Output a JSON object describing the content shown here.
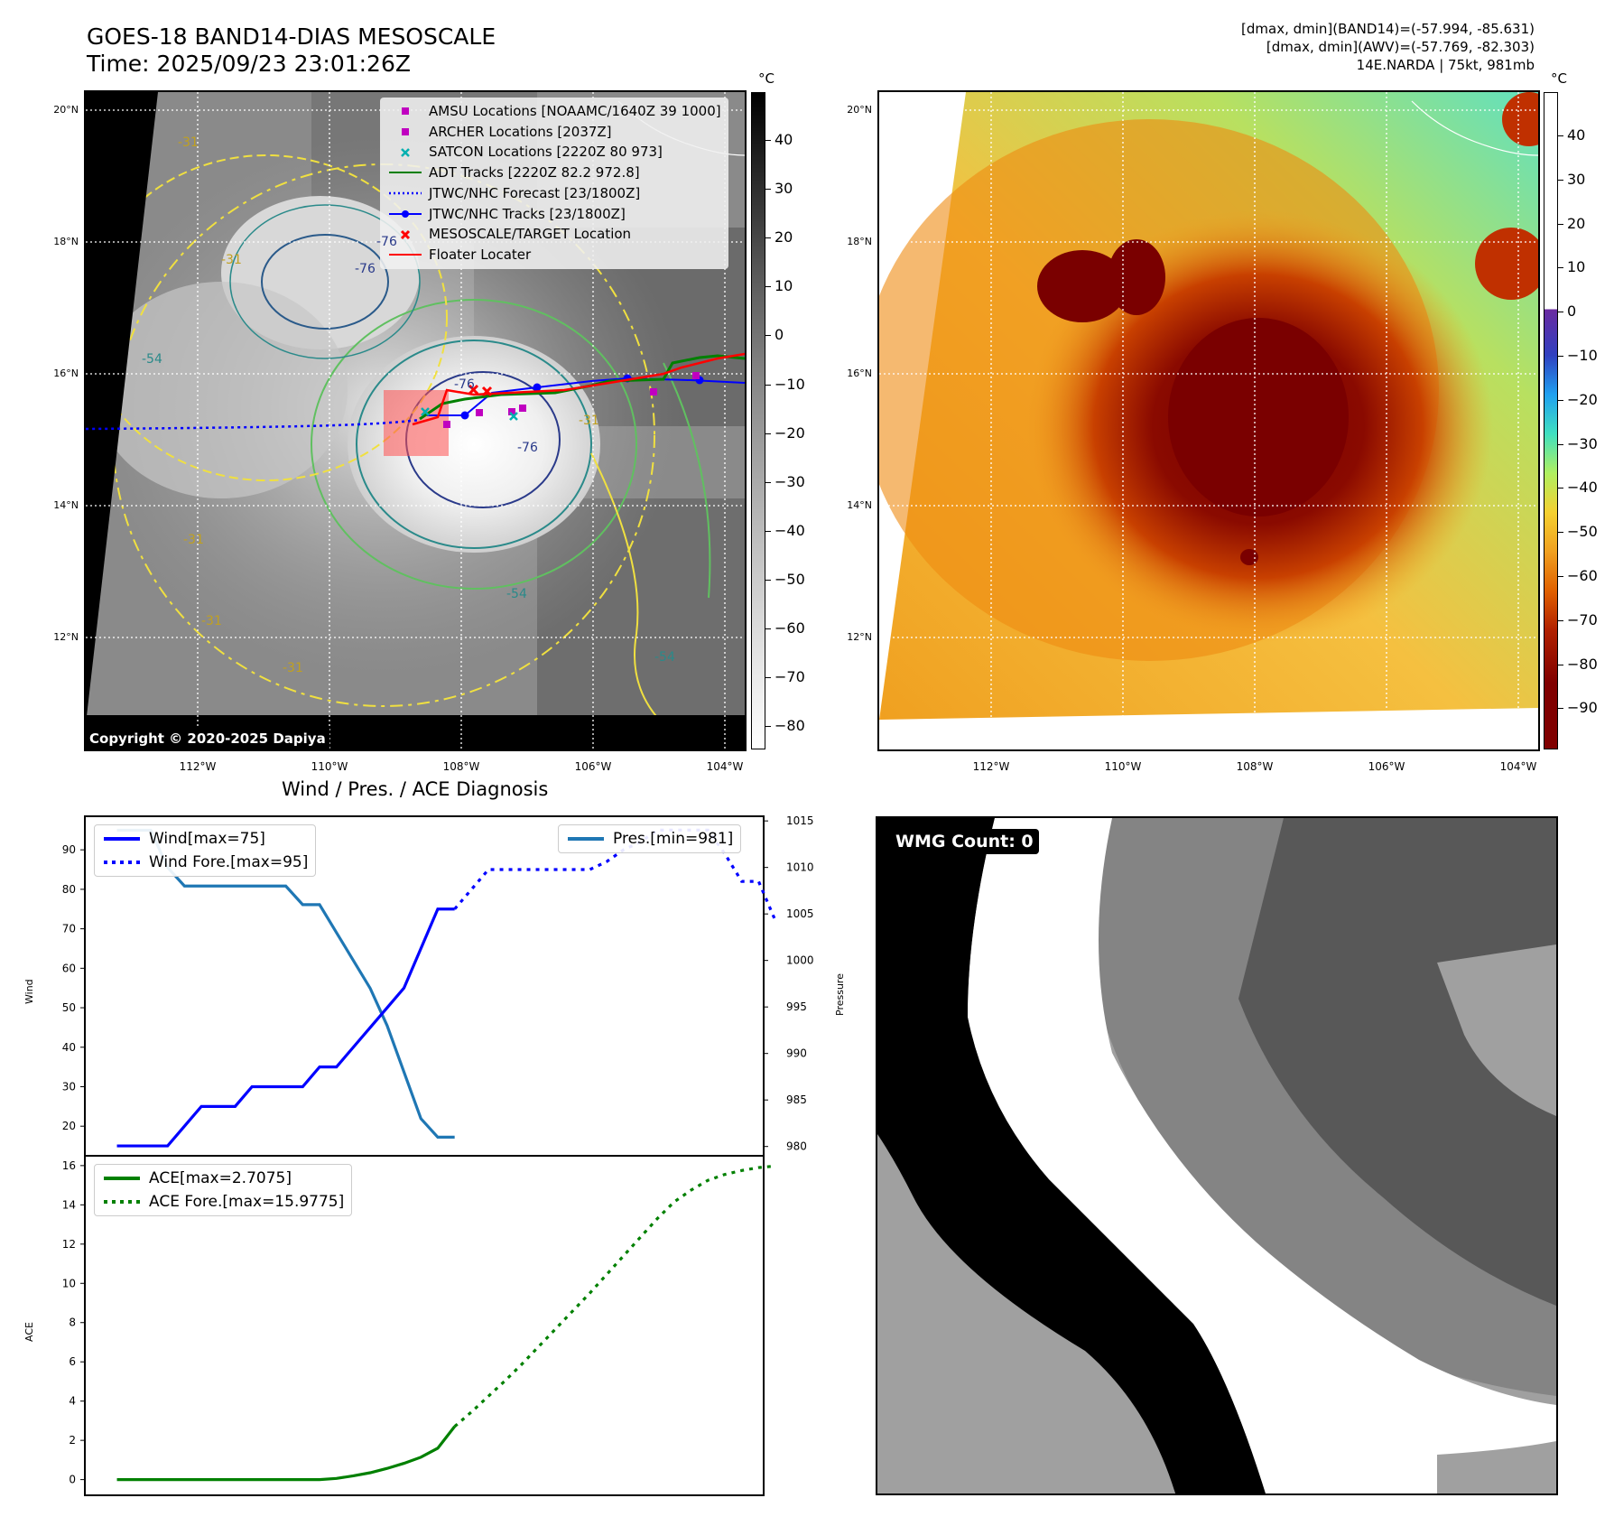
{
  "header": {
    "title_line1": "GOES-18 BAND14-DIAS MESOSCALE",
    "title_line2": "Time: 2025/09/23 23:01:26Z",
    "right_line1": "[dmax, dmin](BAND14)=(-57.994, -85.631)",
    "right_line2": "[dmax, dmin](AWV)=(-57.769, -82.303)",
    "right_line3": "14E.NARDA | 75kt, 981mb"
  },
  "map_axes": {
    "lon_labels": [
      "112°W",
      "110°W",
      "108°W",
      "106°W",
      "104°W"
    ],
    "lat_labels": [
      "20°N",
      "18°N",
      "16°N",
      "14°N",
      "12°N"
    ]
  },
  "ir_panel": {
    "legend": [
      {
        "label": "AMSU Locations [NOAAMC/1640Z 39 1000]",
        "symbol": "square",
        "color": "#c000c0"
      },
      {
        "label": "ARCHER Locations [2037Z]",
        "symbol": "square",
        "color": "#c000c0"
      },
      {
        "label": "SATCON Locations [2220Z 80 973]",
        "symbol": "x",
        "color": "#00b0b0"
      },
      {
        "label": "ADT Tracks [2220Z 82.2 972.8]",
        "symbol": "line",
        "color": "#008000"
      },
      {
        "label": "JTWC/NHC Forecast [23/1800Z]",
        "symbol": "dotted",
        "color": "#0000ff"
      },
      {
        "label": "JTWC/NHC Tracks [23/1800Z]",
        "symbol": "line-dot",
        "color": "#0000ff"
      },
      {
        "label": "MESOSCALE/TARGET Location",
        "symbol": "x",
        "color": "#ff0000"
      },
      {
        "label": "Floater Locater",
        "symbol": "line",
        "color": "#ff0000"
      }
    ],
    "copyright": "Copyright © 2020-2025 Dapiya",
    "contour_labels": [
      "-76",
      "-76",
      "-76",
      "-76",
      "-54",
      "-54",
      "-54",
      "-31",
      "-31",
      "-31",
      "-31",
      "-31",
      "-31"
    ],
    "colorbar_unit": "°C",
    "colorbar_ticks": [
      "40",
      "30",
      "20",
      "10",
      "0",
      "−10",
      "−20",
      "−30",
      "−40",
      "−50",
      "−60",
      "−70",
      "−80"
    ]
  },
  "awv_panel": {
    "colorbar_unit": "°C",
    "colorbar_ticks": [
      "40",
      "30",
      "20",
      "10",
      "0",
      "−10",
      "−20",
      "−30",
      "−40",
      "−50",
      "−60",
      "−70",
      "−80",
      "−90"
    ]
  },
  "wmg_panel": {
    "badge": "WMG Count: 0"
  },
  "colors": {
    "wind": "#0000ff",
    "pressure": "#1f77b4",
    "ace": "#008000",
    "track_red": "#ff0000",
    "track_green": "#008000",
    "awv_cold": "#7a0000",
    "awv_warm": "#f5a623"
  },
  "chart_data": [
    {
      "type": "line",
      "title": "Wind / Pres. / ACE Diagnosis",
      "ylabel": "Wind",
      "ylim": [
        12.5,
        98.5
      ],
      "yticks": [
        20,
        30,
        40,
        50,
        60,
        70,
        80,
        90
      ],
      "x": [
        0,
        1,
        2,
        3,
        4,
        5,
        6,
        7,
        8,
        9,
        10,
        11,
        12,
        13,
        14,
        15,
        16,
        17,
        18,
        19,
        20,
        21,
        22,
        23,
        24,
        25,
        26,
        27,
        28,
        29,
        30,
        31,
        32,
        33,
        34,
        35,
        36,
        37,
        38,
        39
      ],
      "series": [
        {
          "name": "Wind[max=75]",
          "style": "solid",
          "color": "#0000ff",
          "x": [
            0,
            1,
            2,
            3,
            4,
            5,
            6,
            7,
            8,
            9,
            10,
            11,
            12,
            13,
            14,
            15,
            16,
            17,
            18,
            19,
            20
          ],
          "values": [
            15,
            15,
            15,
            15,
            20,
            25,
            25,
            25,
            30,
            30,
            30,
            30,
            35,
            35,
            40,
            45,
            50,
            55,
            65,
            75,
            75
          ]
        },
        {
          "name": "Wind Fore.[max=95]",
          "style": "dotted",
          "color": "#0000ff",
          "x": [
            20,
            21,
            22,
            23,
            24,
            25,
            26,
            27,
            28,
            29,
            30,
            31,
            32,
            33,
            34,
            35,
            36,
            37,
            38,
            39
          ],
          "values": [
            75,
            80,
            85,
            85,
            85,
            85,
            85,
            85,
            85,
            87,
            90,
            92,
            95,
            95,
            95,
            95,
            89,
            82,
            82,
            72
          ]
        }
      ],
      "secondary_axis": {
        "ylabel": "Pressure",
        "ylim": [
          979,
          1015.5
        ],
        "yticks": [
          980,
          985,
          990,
          995,
          1000,
          1005,
          1010,
          1015
        ],
        "series": [
          {
            "name": "Pres.[min=981]",
            "style": "solid",
            "color": "#1f77b4",
            "x": [
              0,
              1,
              2,
              3,
              4,
              5,
              6,
              7,
              8,
              9,
              10,
              11,
              12,
              13,
              14,
              15,
              16,
              17,
              18,
              19,
              20
            ],
            "values": [
              1014,
              1014,
              1014,
              1010,
              1008,
              1008,
              1008,
              1008,
              1008,
              1008,
              1008,
              1006,
              1006,
              1003,
              1000,
              997,
              993,
              988,
              983,
              981,
              981
            ]
          }
        ]
      }
    },
    {
      "type": "line",
      "ylabel": "ACE",
      "ylim": [
        -0.8,
        16.5
      ],
      "yticks": [
        0,
        2,
        4,
        6,
        8,
        10,
        12,
        14,
        16
      ],
      "series": [
        {
          "name": "ACE[max=2.7075]",
          "style": "solid",
          "color": "#008000",
          "x": [
            0,
            2,
            4,
            6,
            8,
            10,
            11,
            12,
            13,
            14,
            15,
            16,
            17,
            18,
            19,
            20
          ],
          "values": [
            0,
            0,
            0,
            0,
            0,
            0,
            0,
            0,
            0.06,
            0.19,
            0.35,
            0.57,
            0.83,
            1.14,
            1.6,
            2.7075
          ]
        },
        {
          "name": "ACE Fore.[max=15.9775]",
          "style": "dotted",
          "color": "#008000",
          "x": [
            20,
            21,
            22,
            23,
            24,
            25,
            26,
            27,
            28,
            29,
            30,
            31,
            32,
            33,
            34,
            35,
            36,
            37,
            38,
            39
          ],
          "values": [
            2.7075,
            3.45,
            4.25,
            5.05,
            5.9,
            6.8,
            7.7,
            8.6,
            9.5,
            10.45,
            11.4,
            12.35,
            13.3,
            14.15,
            14.75,
            15.25,
            15.55,
            15.75,
            15.9,
            15.9775
          ]
        }
      ]
    }
  ]
}
